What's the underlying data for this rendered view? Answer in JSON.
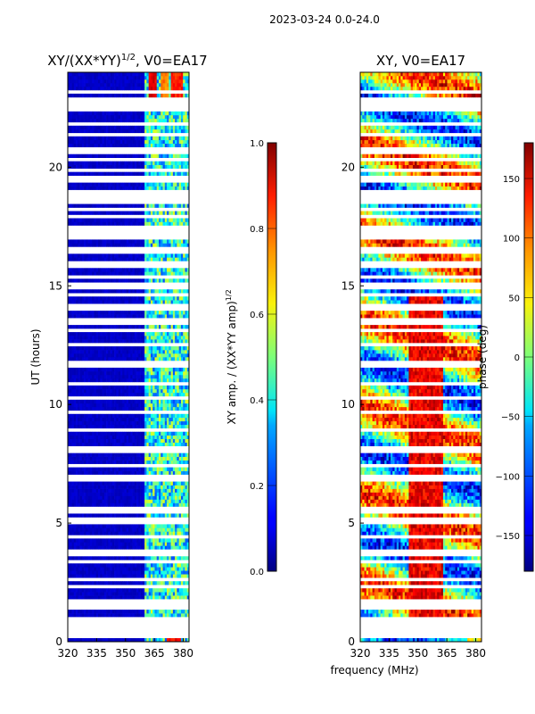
{
  "figure_title": "2023-03-24 0.0-24.0",
  "shared_xlabel": "frequency (MHz)",
  "chart_data": [
    {
      "type": "heatmap",
      "title": "XY/(XX*YY)^{1/2}, V0=EA17",
      "title_parts": {
        "main": "XY/(XX*YY)",
        "sup": "1/2",
        "rest": ", V0=EA17"
      },
      "ylabel": "UT (hours)",
      "xlim": [
        320,
        383
      ],
      "ylim": [
        0,
        24
      ],
      "xticks": [
        320,
        335,
        350,
        365,
        380
      ],
      "yticks": [
        0,
        5,
        10,
        15,
        20
      ],
      "colorbar": {
        "label": "XY amp. / (XX*YY amp)^{1/2}",
        "label_parts": {
          "main": "XY amp. / (XX*YY amp)",
          "sup": "1/2"
        },
        "range": [
          0.0,
          1.0
        ],
        "ticks": [
          "0.0",
          "0.2",
          "0.4",
          "0.6",
          "0.8",
          "1.0"
        ],
        "colormap": "jet"
      },
      "features": {
        "background_value": 0.05,
        "active_band_mhz": [
          360,
          383
        ],
        "active_value_range": [
          0.2,
          0.6
        ],
        "hot_spots": [
          {
            "f": [
              362,
              366
            ],
            "t": [
              23.0,
              24.0
            ],
            "value": 0.95
          },
          {
            "f": [
              368,
              372
            ],
            "t": [
              23.0,
              24.0
            ],
            "value": 0.8
          },
          {
            "f": [
              374,
              380
            ],
            "t": [
              23.0,
              24.0
            ],
            "value": 0.9
          },
          {
            "f": [
              371,
              379
            ],
            "t": [
              0.0,
              1.0
            ],
            "value": 0.92
          }
        ]
      }
    },
    {
      "type": "heatmap",
      "title": "XY, V0=EA17",
      "xlim": [
        320,
        383
      ],
      "ylim": [
        0,
        24
      ],
      "xticks": [
        320,
        335,
        350,
        365,
        380
      ],
      "yticks": [
        0,
        5,
        10,
        15,
        20
      ],
      "colorbar": {
        "label": "phase (deg)",
        "range": [
          -180,
          180
        ],
        "ticks": [
          "−150",
          "−100",
          "−50",
          "0",
          "50",
          "100",
          "150"
        ],
        "tick_values": [
          -150,
          -100,
          -50,
          0,
          50,
          100,
          150
        ],
        "colormap": "jet"
      },
      "features": {
        "red_band_mhz": [
          345,
          363
        ],
        "red_band_hours": [
          1,
          14.5
        ]
      }
    }
  ],
  "flagged_rows_hours": [
    0.3,
    0.6,
    0.9,
    1.5,
    1.7,
    2.3,
    2.6,
    3.4,
    3.65,
    3.75,
    4.4,
    5.1,
    5.5,
    5.6,
    6.9,
    7.4,
    8.0,
    8.2,
    8.9,
    9.7,
    10.3,
    10.9,
    11.7,
    12.5,
    13.1,
    13.5,
    14.1,
    14.6,
    14.9,
    15.1,
    15.4,
    15.8,
    16.0,
    16.5,
    17.1,
    17.4,
    17.9,
    18.2,
    18.6,
    18.9,
    19.5,
    19.9,
    20.3,
    20.7,
    20.8,
    21.4,
    21.8,
    22.5,
    22.8,
    23.2
  ]
}
